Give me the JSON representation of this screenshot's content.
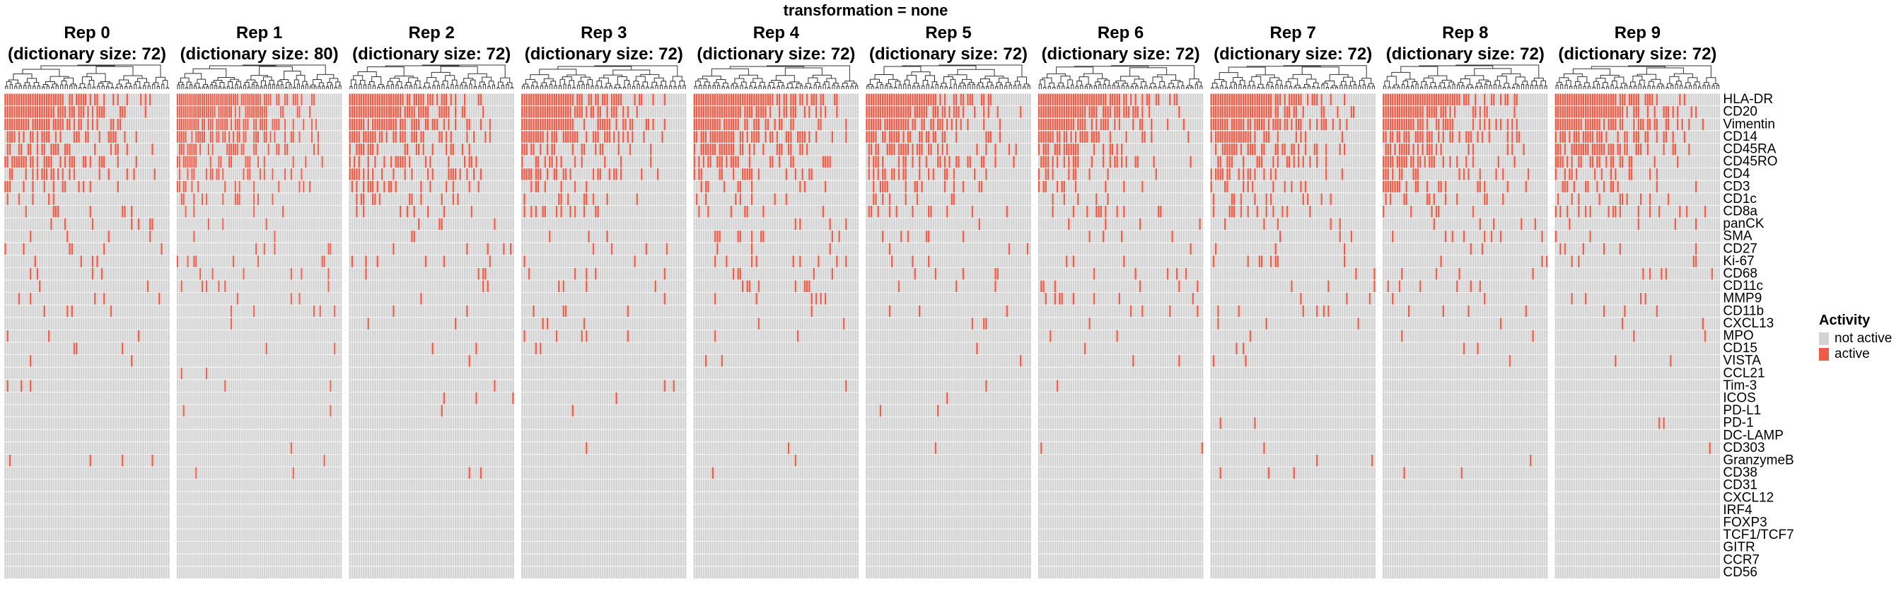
{
  "chart_data": {
    "type": "heatmap",
    "title": "transformation = none",
    "panels": [
      {
        "title": "Rep 0",
        "subtitle": "(dictionary size: 72)",
        "n_columns": 72
      },
      {
        "title": "Rep 1",
        "subtitle": "(dictionary size: 80)",
        "n_columns": 80
      },
      {
        "title": "Rep 2",
        "subtitle": "(dictionary size: 72)",
        "n_columns": 72
      },
      {
        "title": "Rep 3",
        "subtitle": "(dictionary size: 72)",
        "n_columns": 72
      },
      {
        "title": "Rep 4",
        "subtitle": "(dictionary size: 72)",
        "n_columns": 72
      },
      {
        "title": "Rep 5",
        "subtitle": "(dictionary size: 72)",
        "n_columns": 72
      },
      {
        "title": "Rep 6",
        "subtitle": "(dictionary size: 72)",
        "n_columns": 72
      },
      {
        "title": "Rep 7",
        "subtitle": "(dictionary size: 72)",
        "n_columns": 72
      },
      {
        "title": "Rep 8",
        "subtitle": "(dictionary size: 72)",
        "n_columns": 72
      },
      {
        "title": "Rep 9",
        "subtitle": "(dictionary size: 72)",
        "n_columns": 72
      }
    ],
    "rows": [
      "HLA-DR",
      "CD20",
      "Vimentin",
      "CD14",
      "CD45RA",
      "CD45RO",
      "CD4",
      "CD3",
      "CD1c",
      "CD8a",
      "panCK",
      "SMA",
      "CD27",
      "Ki-67",
      "CD68",
      "CD11c",
      "MMP9",
      "CD11b",
      "CXCL13",
      "MPO",
      "CD15",
      "VISTA",
      "CCL21",
      "Tim-3",
      "ICOS",
      "PD-L1",
      "PD-1",
      "DC-LAMP",
      "CD303",
      "GranzymeB",
      "CD38",
      "CD31",
      "CXCL12",
      "IRF4",
      "FOXP3",
      "TCF1/TCF7",
      "GITR",
      "CCR7",
      "CD56"
    ],
    "row_active_fraction": [
      0.75,
      0.65,
      0.55,
      0.45,
      0.38,
      0.33,
      0.25,
      0.2,
      0.15,
      0.12,
      0.04,
      0.05,
      0.06,
      0.06,
      0.06,
      0.05,
      0.04,
      0.03,
      0.02,
      0.02,
      0.02,
      0.02,
      0.01,
      0.01,
      0.01,
      0.01,
      0.01,
      0.0,
      0.01,
      0.01,
      0.01,
      0.0,
      0.0,
      0.0,
      0.0,
      0.0,
      0.0,
      0.0,
      0.0
    ],
    "legend": {
      "title": "Activity",
      "items": [
        {
          "label": "not active",
          "color": "#d3d3d3"
        },
        {
          "label": "active",
          "color": "#ee5b47"
        }
      ],
      "placement": "right"
    },
    "dendrogram": "top"
  }
}
